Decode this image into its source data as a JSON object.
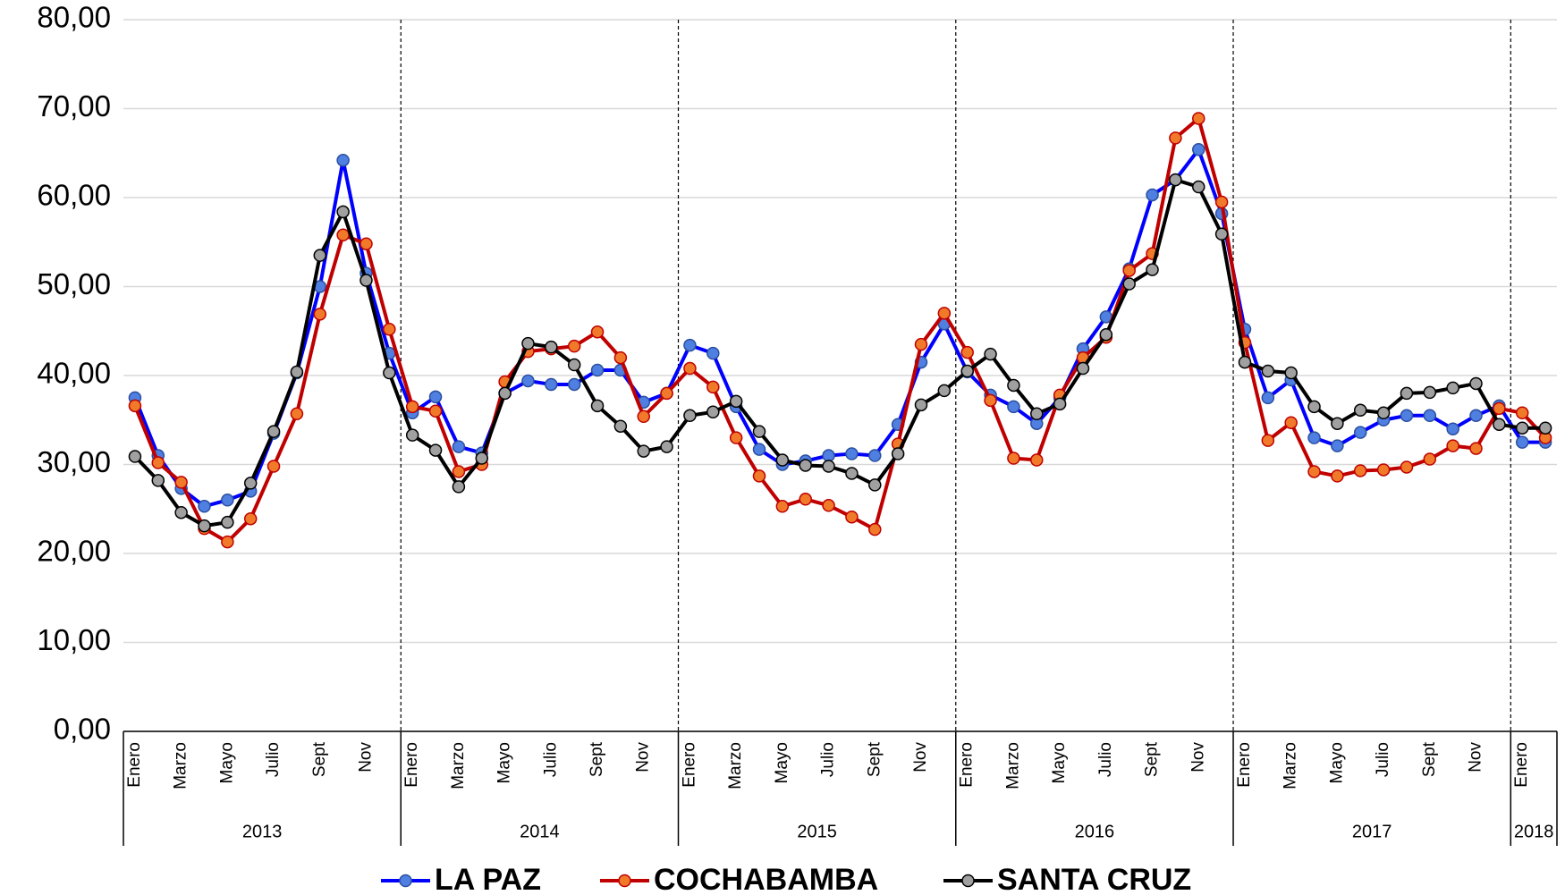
{
  "chart_data": {
    "type": "line",
    "categories": [
      "Enero",
      null,
      "Marzo",
      null,
      "Mayo",
      null,
      "Julio",
      null,
      "Sept",
      null,
      "Nov",
      null,
      "Enero",
      null,
      "Marzo",
      null,
      "Mayo",
      null,
      "Julio",
      null,
      "Sept",
      null,
      "Nov",
      null,
      "Enero",
      null,
      "Marzo",
      null,
      "Mayo",
      null,
      "Julio",
      null,
      "Sept",
      null,
      "Nov",
      null,
      "Enero",
      null,
      "Marzo",
      null,
      "Mayo",
      null,
      "Julio",
      null,
      "Sept",
      null,
      "Nov",
      null,
      "Enero",
      null,
      "Marzo",
      null,
      "Mayo",
      null,
      "Julio",
      null,
      "Sept",
      null,
      "Nov",
      null,
      "Enero",
      null
    ],
    "group_labels": [
      "2013",
      "2014",
      "2015",
      "2016",
      "2017",
      "2018"
    ],
    "series": [
      {
        "name": "LA PAZ",
        "color": "#0000ff",
        "marker_color": "#4f7fe0",
        "marker_edge": "#2a4fa0",
        "values": [
          37.5,
          31,
          27.3,
          25.3,
          26,
          27,
          33.5,
          40.3,
          50,
          64.2,
          51.5,
          42.5,
          35.8,
          37.6,
          32,
          31.3,
          38,
          39.4,
          39,
          39,
          40.6,
          40.6,
          37,
          38,
          43.4,
          42.5,
          36.5,
          31.7,
          30,
          30.4,
          31,
          31.2,
          31,
          34.5,
          41.5,
          45.8,
          40.4,
          37.8,
          36.5,
          34.6,
          37.5,
          43,
          46.6,
          52,
          60.3,
          62,
          65.4,
          58.2,
          45.2,
          37.5,
          39.5,
          33,
          32.1,
          33.6,
          35,
          35.5,
          35.5,
          34,
          35.5,
          36.6,
          32.5,
          32.5
        ]
      },
      {
        "name": "COCHABAMBA",
        "color": "#c00000",
        "marker_color": "#f07a2a",
        "marker_edge": "#c00000",
        "values": [
          36.6,
          30.2,
          28,
          22.8,
          21.3,
          23.9,
          29.8,
          35.7,
          46.9,
          55.8,
          54.8,
          45.2,
          36.5,
          36,
          29.2,
          30,
          39.3,
          42.7,
          43,
          43.3,
          44.9,
          42,
          35.4,
          38,
          40.8,
          38.7,
          33,
          28.7,
          25.3,
          26.1,
          25.4,
          24.1,
          22.7,
          32.3,
          43.5,
          47,
          42.6,
          37.2,
          30.7,
          30.5,
          37.8,
          42,
          44.3,
          51.8,
          53.7,
          66.7,
          68.9,
          59.5,
          43.7,
          32.7,
          34.7,
          29.2,
          28.7,
          29.3,
          29.4,
          29.7,
          30.6,
          32.1,
          31.8,
          36.3,
          35.8,
          33
        ]
      },
      {
        "name": "SANTA CRUZ",
        "color": "#000000",
        "marker_color": "#a0a0a0",
        "marker_edge": "#000000",
        "values": [
          30.9,
          28.2,
          24.6,
          23.1,
          23.5,
          27.9,
          33.7,
          40.4,
          53.5,
          58.4,
          50.7,
          40.3,
          33.3,
          31.6,
          27.5,
          30.7,
          38,
          43.6,
          43.2,
          41.2,
          36.6,
          34.3,
          31.5,
          32,
          35.5,
          35.9,
          37.1,
          33.7,
          30.5,
          29.9,
          29.8,
          29,
          27.7,
          31.2,
          36.7,
          38.3,
          40.5,
          42.4,
          38.9,
          35.7,
          36.8,
          40.8,
          44.6,
          50.3,
          51.9,
          62,
          61.2,
          55.9,
          41.5,
          40.5,
          40.3,
          36.5,
          34.6,
          36.1,
          35.8,
          38,
          38.1,
          38.6,
          39.1,
          34.5,
          34.1,
          34.1
        ]
      }
    ],
    "ylim": [
      0,
      80
    ],
    "yticks": [
      {
        "value": 0,
        "label": "0,00"
      },
      {
        "value": 10,
        "label": "10,00"
      },
      {
        "value": 20,
        "label": "20,00"
      },
      {
        "value": 30,
        "label": "30,00"
      },
      {
        "value": 40,
        "label": "40,00"
      },
      {
        "value": 50,
        "label": "50,00"
      },
      {
        "value": 60,
        "label": "60,00"
      },
      {
        "value": 70,
        "label": "70,00"
      },
      {
        "value": 80,
        "label": "80,00"
      }
    ],
    "grid": true,
    "legend": "bottom"
  }
}
